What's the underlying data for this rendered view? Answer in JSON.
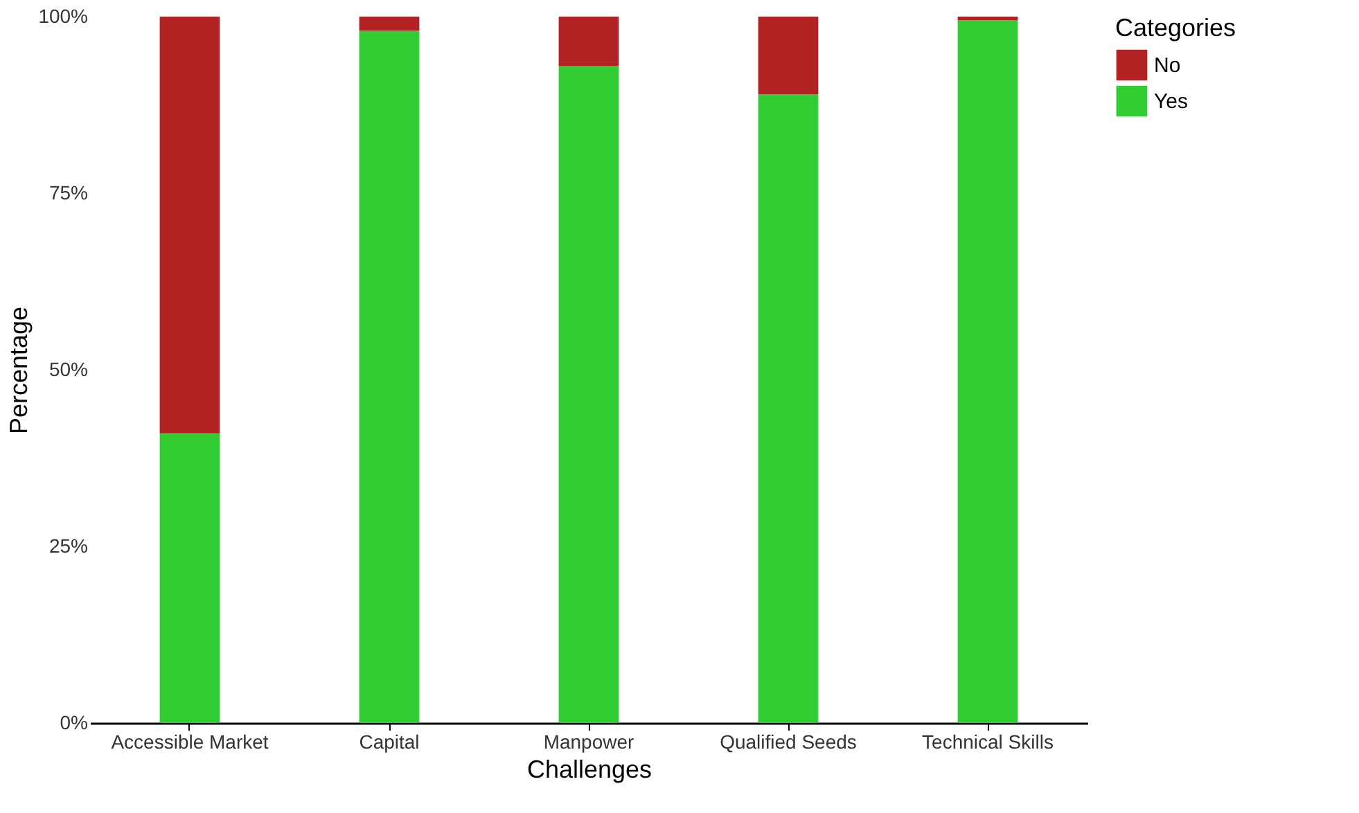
{
  "chart_data": {
    "type": "bar",
    "stacked": true,
    "xlabel": "Challenges",
    "ylabel": "Percentage",
    "legend_title": "Categories",
    "categories": [
      "Accessible Market",
      "Capital",
      "Manpower",
      "Qualified Seeds",
      "Technical Skills"
    ],
    "series": [
      {
        "name": "Yes",
        "color": "#32cd32",
        "values": [
          41,
          98,
          93,
          89,
          99.5
        ]
      },
      {
        "name": "No",
        "color": "#b22222",
        "values": [
          59,
          2,
          7,
          11,
          0.5
        ]
      }
    ],
    "ylim": [
      0,
      100
    ],
    "yticks": [
      {
        "value": 0,
        "label": "0%"
      },
      {
        "value": 25,
        "label": "25%"
      },
      {
        "value": 50,
        "label": "50%"
      },
      {
        "value": 75,
        "label": "75%"
      },
      {
        "value": 100,
        "label": "100%"
      }
    ],
    "grid": false,
    "legend": "right"
  }
}
